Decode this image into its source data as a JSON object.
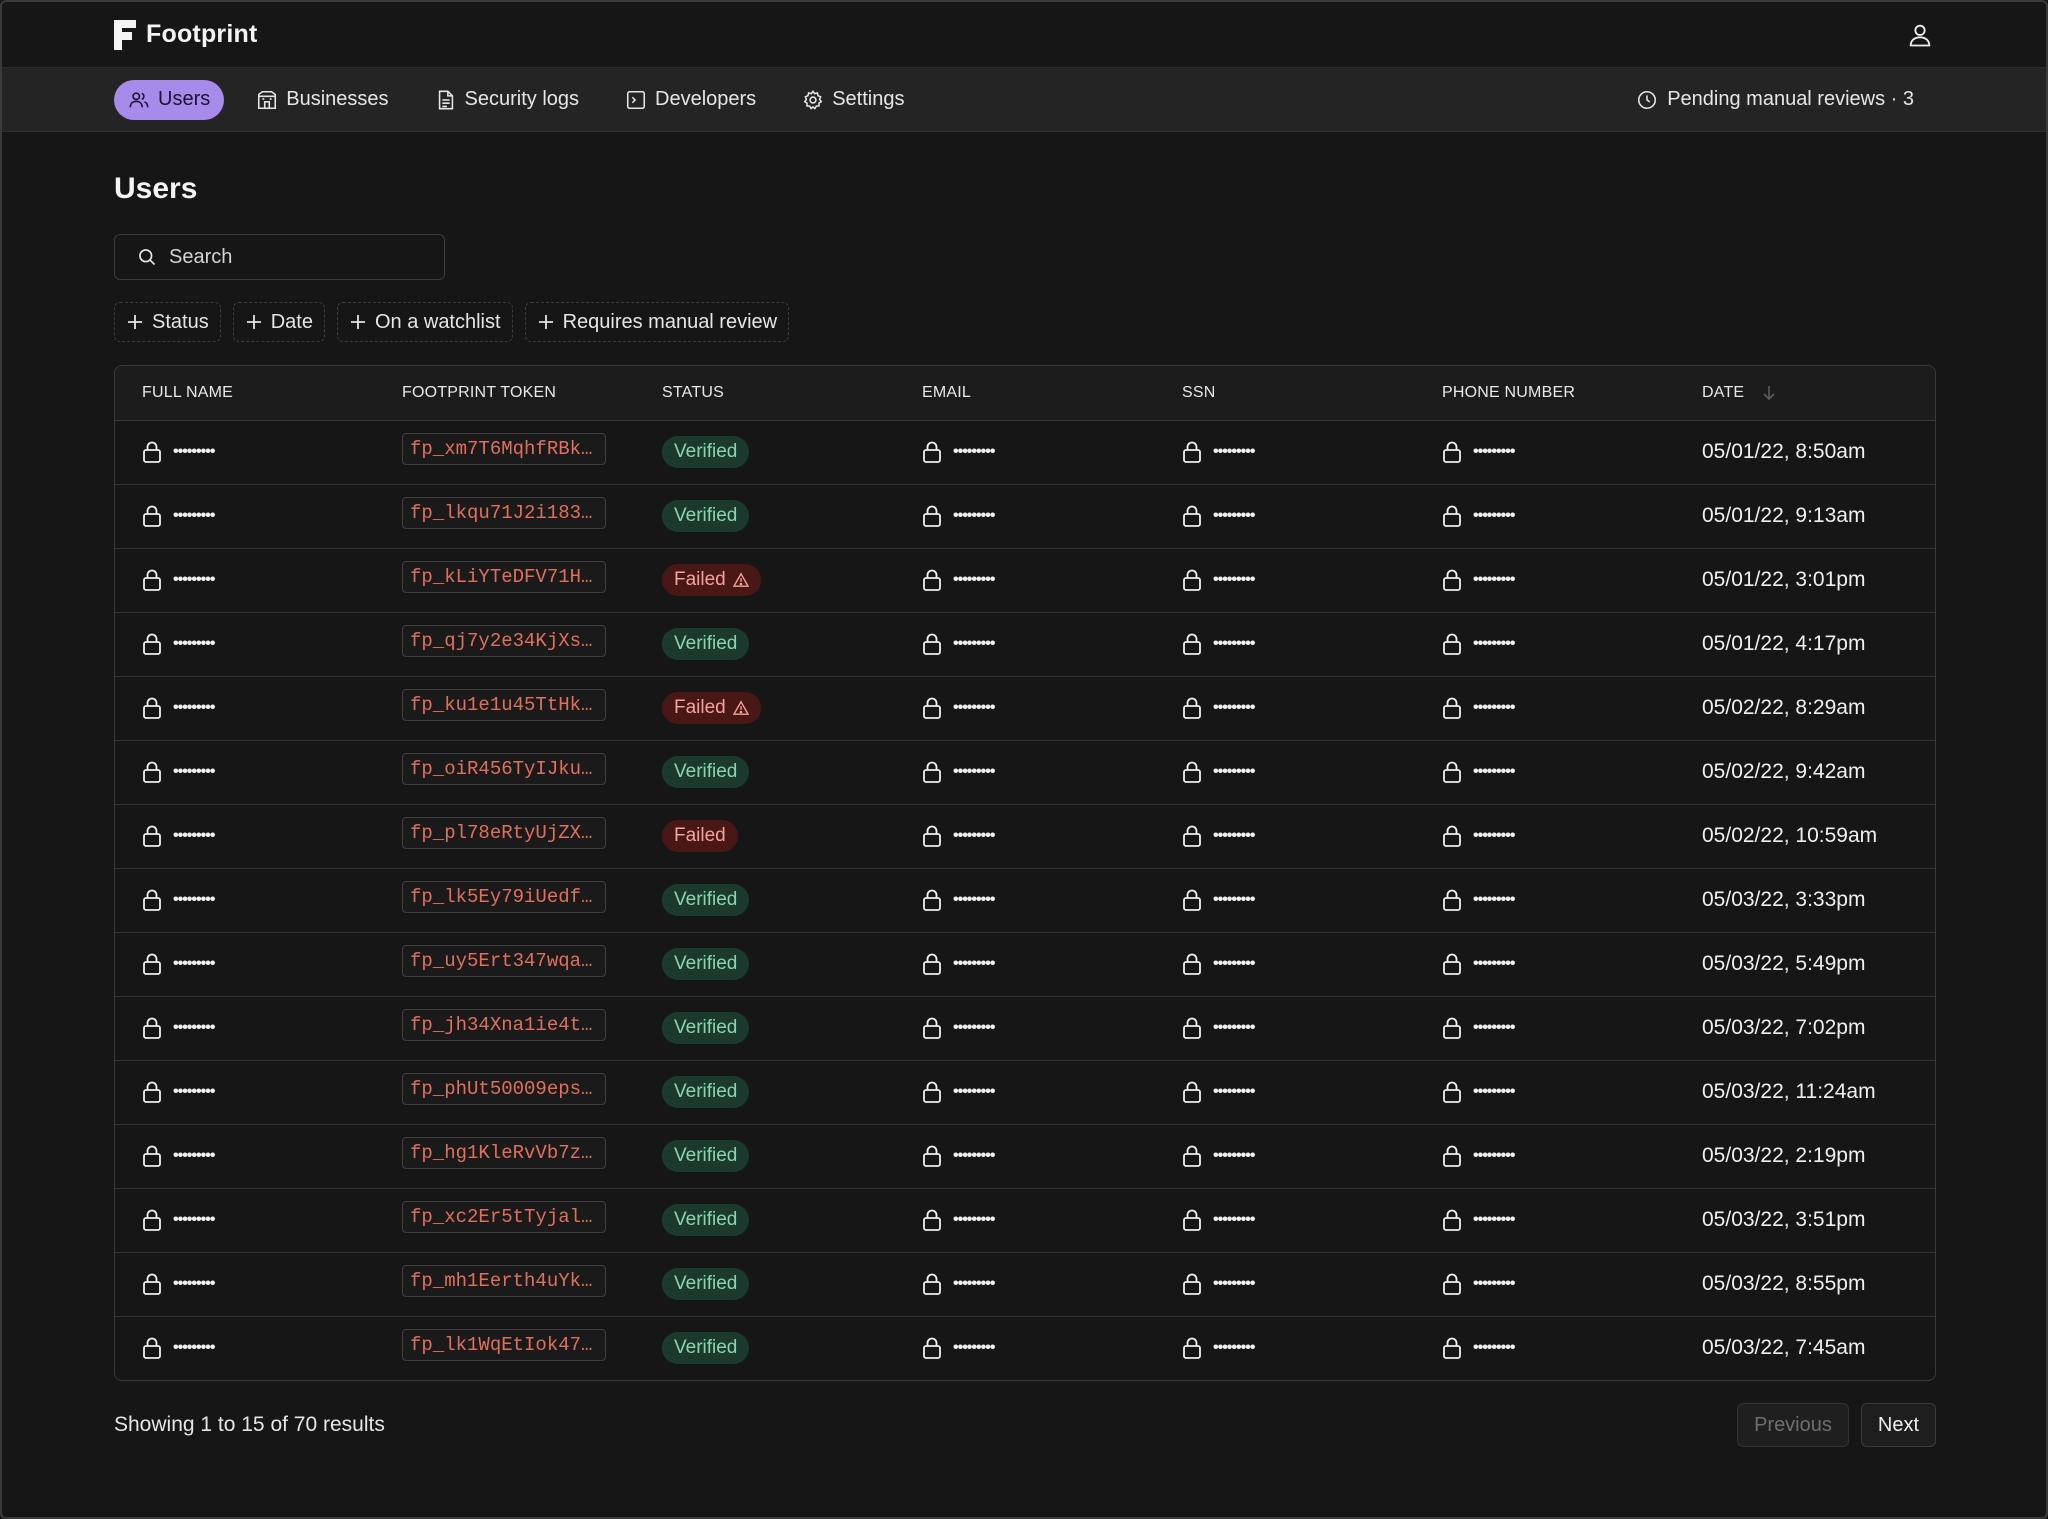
{
  "brand": {
    "name": "Footprint"
  },
  "nav": {
    "items": [
      {
        "label": "Users",
        "icon": "users-icon",
        "active": true
      },
      {
        "label": "Businesses",
        "icon": "building-icon",
        "active": false
      },
      {
        "label": "Security logs",
        "icon": "document-icon",
        "active": false
      },
      {
        "label": "Developers",
        "icon": "terminal-icon",
        "active": false
      },
      {
        "label": "Settings",
        "icon": "gear-icon",
        "active": false
      }
    ],
    "pending_reviews": "Pending manual reviews · 3"
  },
  "page": {
    "title": "Users"
  },
  "search": {
    "placeholder": "Search"
  },
  "filters": [
    "Status",
    "Date",
    "On a watchlist",
    "Requires manual review"
  ],
  "table": {
    "columns": [
      "FULL NAME",
      "FOOTPRINT TOKEN",
      "STATUS",
      "EMAIL",
      "SSN",
      "PHONE NUMBER",
      "DATE"
    ],
    "masked": "•••••••••",
    "rows": [
      {
        "token": "fp_xm7T6MqhfRBk…",
        "status": "Verified",
        "warning": false,
        "date": "05/01/22, 8:50am"
      },
      {
        "token": "fp_lkqu71J2i183…",
        "status": "Verified",
        "warning": false,
        "date": "05/01/22, 9:13am"
      },
      {
        "token": "fp_kLiYTeDFV71H…",
        "status": "Failed",
        "warning": true,
        "date": "05/01/22, 3:01pm"
      },
      {
        "token": "fp_qj7y2e34KjXs…",
        "status": "Verified",
        "warning": false,
        "date": "05/01/22, 4:17pm"
      },
      {
        "token": "fp_ku1e1u45TtHk…",
        "status": "Failed",
        "warning": true,
        "date": "05/02/22, 8:29am"
      },
      {
        "token": "fp_oiR456TyIJku…",
        "status": "Verified",
        "warning": false,
        "date": "05/02/22, 9:42am"
      },
      {
        "token": "fp_pl78eRtyUjZX…",
        "status": "Failed",
        "warning": false,
        "date": "05/02/22, 10:59am"
      },
      {
        "token": "fp_lk5Ey79iUedf…",
        "status": "Verified",
        "warning": false,
        "date": "05/03/22, 3:33pm"
      },
      {
        "token": "fp_uy5Ert347wqa…",
        "status": "Verified",
        "warning": false,
        "date": "05/03/22, 5:49pm"
      },
      {
        "token": "fp_jh34Xna1ie4t…",
        "status": "Verified",
        "warning": false,
        "date": "05/03/22, 7:02pm"
      },
      {
        "token": "fp_phUt50009eps…",
        "status": "Verified",
        "warning": false,
        "date": "05/03/22, 11:24am"
      },
      {
        "token": "fp_hg1KleRvVb7z…",
        "status": "Verified",
        "warning": false,
        "date": "05/03/22, 2:19pm"
      },
      {
        "token": "fp_xc2Er5tTyjal…",
        "status": "Verified",
        "warning": false,
        "date": "05/03/22, 3:51pm"
      },
      {
        "token": "fp_mh1Eerth4uYk…",
        "status": "Verified",
        "warning": false,
        "date": "05/03/22, 8:55pm"
      },
      {
        "token": "fp_lk1WqEtIok47…",
        "status": "Verified",
        "warning": false,
        "date": "05/03/22, 7:45am"
      }
    ]
  },
  "footer": {
    "results": "Showing 1 to 15 of 70 results",
    "previous": "Previous",
    "next": "Next"
  },
  "colors": {
    "accent": "#a78bea",
    "verified_bg": "#1a3b2c",
    "verified_text": "#8dd5ac",
    "failed_bg": "#4a1717",
    "failed_text": "#f3a49a",
    "token_text": "#e0705d"
  }
}
